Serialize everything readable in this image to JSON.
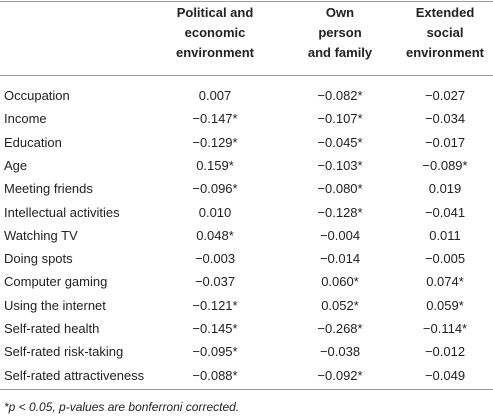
{
  "table": {
    "headers": [
      [
        "Political and",
        "economic",
        "environment"
      ],
      [
        "Own",
        "person",
        "and family"
      ],
      [
        "Extended",
        "social",
        "environment"
      ]
    ],
    "rows": [
      [
        "Occupation",
        "0.007",
        "−0.082*",
        "−0.027"
      ],
      [
        "Income",
        "−0.147*",
        "−0.107*",
        "−0.034"
      ],
      [
        "Education",
        "−0.129*",
        "−0.045*",
        "−0.017"
      ],
      [
        "Age",
        "0.159*",
        "−0.103*",
        "−0.089*"
      ],
      [
        "Meeting friends",
        "−0.096*",
        "−0.080*",
        "0.019"
      ],
      [
        "Intellectual activities",
        "0.010",
        "−0.128*",
        "−0.041"
      ],
      [
        "Watching TV",
        "0.048*",
        "−0.004",
        "0.011"
      ],
      [
        "Doing spots",
        "−0.003",
        "−0.014",
        "−0.005"
      ],
      [
        "Computer gaming",
        "−0.037",
        "0.060*",
        "0.074*"
      ],
      [
        "Using the internet",
        "−0.121*",
        "0.052*",
        "0.059*"
      ],
      [
        "Self-rated health",
        "−0.145*",
        "−0.268*",
        "−0.114*"
      ],
      [
        "Self-rated risk-taking",
        "−0.095*",
        "−0.038",
        "−0.012"
      ],
      [
        "Self-rated attractiveness",
        "−0.088*",
        "−0.092*",
        "−0.049"
      ]
    ],
    "footnote": "*p < 0.05, p-values are bonferroni corrected."
  }
}
